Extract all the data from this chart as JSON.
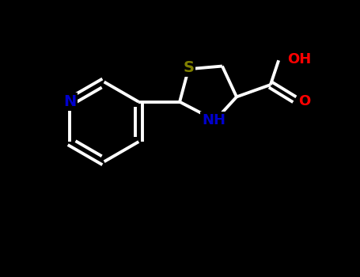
{
  "background_color": "#000000",
  "bond_color": "#ffffff",
  "S_color": "#808000",
  "N_color": "#0000cd",
  "O_color": "#ff0000",
  "NH_color": "#0000cd",
  "line_width": 2.8,
  "figsize": [
    4.55,
    3.5
  ],
  "dpi": 100,
  "xlim": [
    -0.7,
    0.7
  ],
  "ylim": [
    -0.55,
    0.45
  ]
}
